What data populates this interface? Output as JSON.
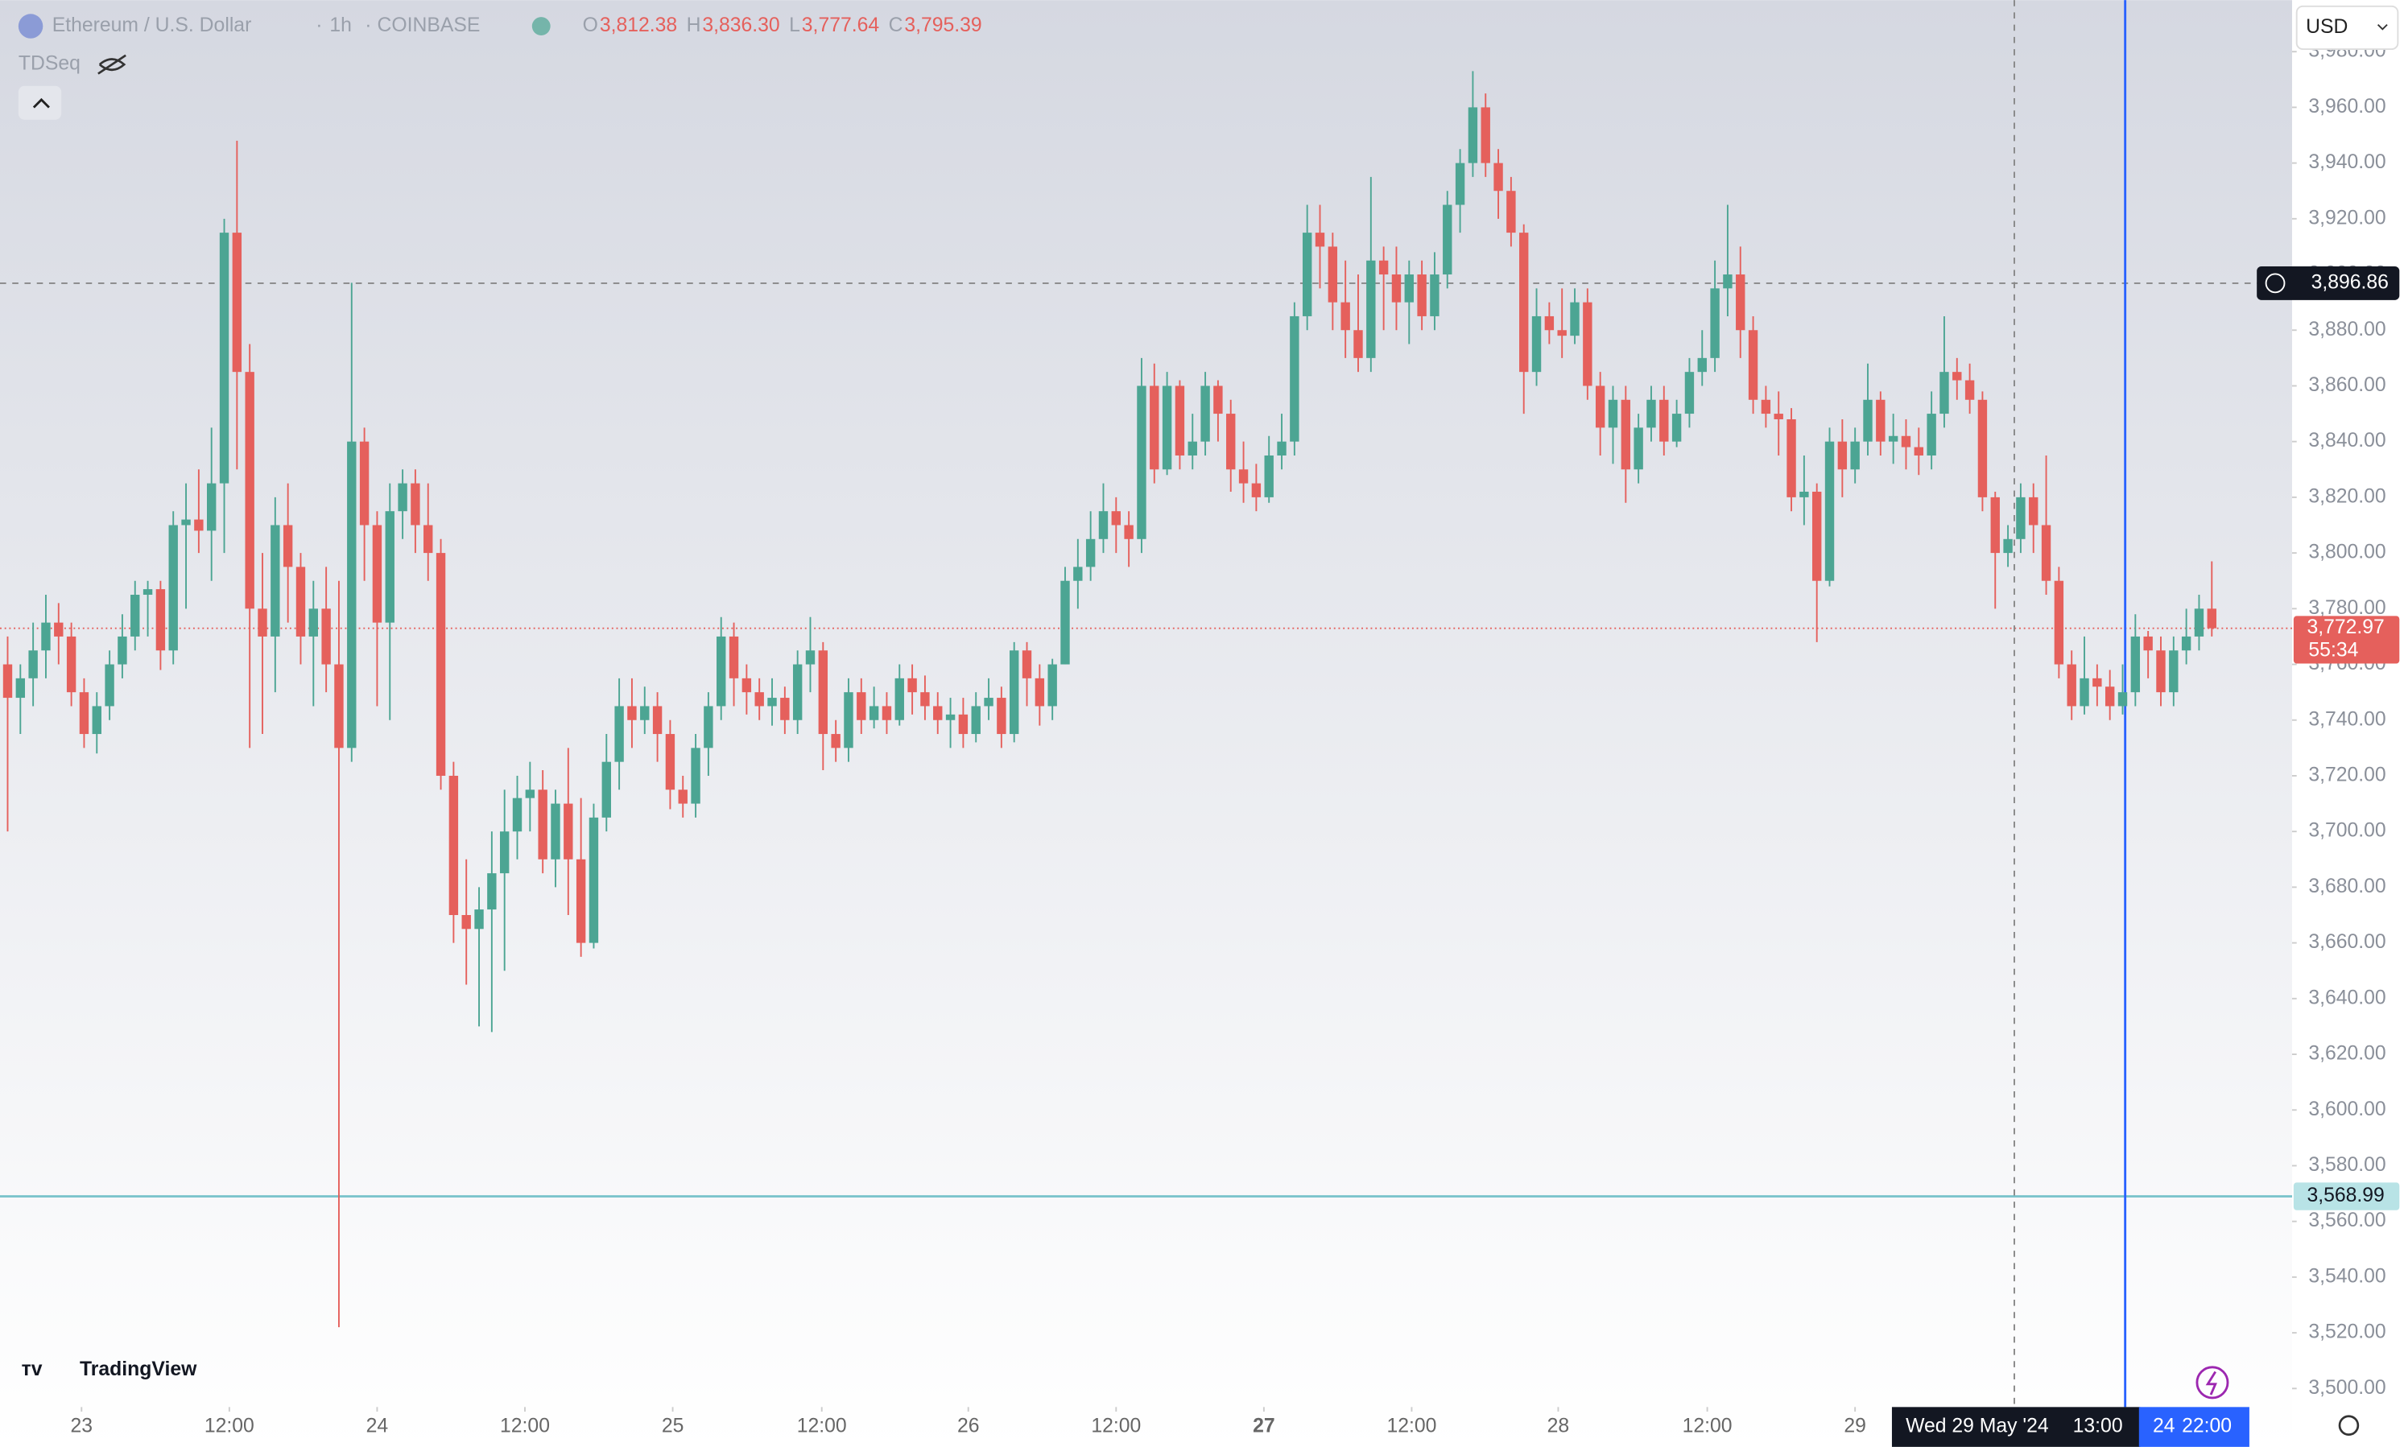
{
  "chart_data": {
    "type": "candlestick",
    "title": "Ethereum / U.S. Dollar",
    "interval": "1h",
    "exchange": "COINBASE",
    "ohlc_legend": [
      {
        "key": "O",
        "value": 3812.38,
        "label": "3,812.38"
      },
      {
        "key": "H",
        "value": 3836.3,
        "label": "3,836.30"
      },
      {
        "key": "L",
        "value": 3777.64,
        "label": "3,777.64"
      },
      {
        "key": "C",
        "value": 3795.39,
        "label": "3,795.39"
      }
    ],
    "indicator": "TDSeq",
    "currency": "USD",
    "brand": "TradingView",
    "up_color": "#4ca593",
    "down_color": "#e5605c",
    "candles": [
      [
        3760,
        3770,
        3700,
        3748
      ],
      [
        3748,
        3760,
        3735,
        3755
      ],
      [
        3755,
        3775,
        3745,
        3765
      ],
      [
        3765,
        3785,
        3755,
        3775
      ],
      [
        3775,
        3782,
        3760,
        3770
      ],
      [
        3770,
        3775,
        3745,
        3750
      ],
      [
        3750,
        3755,
        3730,
        3735
      ],
      [
        3735,
        3750,
        3728,
        3745
      ],
      [
        3745,
        3765,
        3740,
        3760
      ],
      [
        3760,
        3778,
        3755,
        3770
      ],
      [
        3770,
        3790,
        3765,
        3785
      ],
      [
        3785,
        3790,
        3770,
        3787
      ],
      [
        3787,
        3790,
        3758,
        3765
      ],
      [
        3765,
        3815,
        3760,
        3810
      ],
      [
        3810,
        3825,
        3780,
        3812
      ],
      [
        3812,
        3830,
        3800,
        3808
      ],
      [
        3808,
        3845,
        3790,
        3825
      ],
      [
        3825,
        3920,
        3800,
        3915
      ],
      [
        3915,
        3948,
        3830,
        3865
      ],
      [
        3865,
        3875,
        3730,
        3780
      ],
      [
        3780,
        3800,
        3735,
        3770
      ],
      [
        3770,
        3820,
        3750,
        3810
      ],
      [
        3810,
        3825,
        3775,
        3795
      ],
      [
        3795,
        3800,
        3760,
        3770
      ],
      [
        3770,
        3790,
        3745,
        3780
      ],
      [
        3780,
        3795,
        3750,
        3760
      ],
      [
        3760,
        3790,
        3522,
        3730
      ],
      [
        3730,
        3897,
        3725,
        3840
      ],
      [
        3840,
        3845,
        3790,
        3810
      ],
      [
        3810,
        3815,
        3745,
        3775
      ],
      [
        3775,
        3825,
        3740,
        3815
      ],
      [
        3815,
        3830,
        3805,
        3825
      ],
      [
        3825,
        3830,
        3800,
        3810
      ],
      [
        3810,
        3825,
        3790,
        3800
      ],
      [
        3800,
        3805,
        3715,
        3720
      ],
      [
        3720,
        3725,
        3660,
        3670
      ],
      [
        3670,
        3690,
        3645,
        3665
      ],
      [
        3665,
        3680,
        3630,
        3672
      ],
      [
        3672,
        3700,
        3628,
        3685
      ],
      [
        3685,
        3715,
        3650,
        3700
      ],
      [
        3700,
        3720,
        3690,
        3712
      ],
      [
        3712,
        3725,
        3700,
        3715
      ],
      [
        3715,
        3722,
        3685,
        3690
      ],
      [
        3690,
        3715,
        3680,
        3710
      ],
      [
        3710,
        3730,
        3670,
        3690
      ],
      [
        3690,
        3712,
        3655,
        3660
      ],
      [
        3660,
        3710,
        3658,
        3705
      ],
      [
        3705,
        3735,
        3700,
        3725
      ],
      [
        3725,
        3755,
        3715,
        3745
      ],
      [
        3745,
        3755,
        3730,
        3740
      ],
      [
        3740,
        3752,
        3735,
        3745
      ],
      [
        3745,
        3750,
        3725,
        3735
      ],
      [
        3735,
        3740,
        3708,
        3715
      ],
      [
        3715,
        3720,
        3705,
        3710
      ],
      [
        3710,
        3735,
        3705,
        3730
      ],
      [
        3730,
        3750,
        3720,
        3745
      ],
      [
        3745,
        3777,
        3740,
        3770
      ],
      [
        3770,
        3775,
        3745,
        3755
      ],
      [
        3755,
        3760,
        3742,
        3750
      ],
      [
        3750,
        3755,
        3740,
        3745
      ],
      [
        3745,
        3755,
        3738,
        3748
      ],
      [
        3748,
        3752,
        3735,
        3740
      ],
      [
        3740,
        3765,
        3735,
        3760
      ],
      [
        3760,
        3777,
        3750,
        3765
      ],
      [
        3765,
        3768,
        3722,
        3735
      ],
      [
        3735,
        3740,
        3725,
        3730
      ],
      [
        3730,
        3755,
        3725,
        3750
      ],
      [
        3750,
        3755,
        3735,
        3740
      ],
      [
        3740,
        3752,
        3737,
        3745
      ],
      [
        3745,
        3750,
        3735,
        3740
      ],
      [
        3740,
        3760,
        3738,
        3755
      ],
      [
        3755,
        3760,
        3742,
        3750
      ],
      [
        3750,
        3756,
        3740,
        3745
      ],
      [
        3745,
        3750,
        3735,
        3740
      ],
      [
        3740,
        3748,
        3730,
        3742
      ],
      [
        3742,
        3748,
        3730,
        3735
      ],
      [
        3735,
        3750,
        3732,
        3745
      ],
      [
        3745,
        3755,
        3740,
        3748
      ],
      [
        3748,
        3752,
        3730,
        3735
      ],
      [
        3735,
        3768,
        3732,
        3765
      ],
      [
        3765,
        3768,
        3745,
        3755
      ],
      [
        3755,
        3760,
        3738,
        3745
      ],
      [
        3745,
        3762,
        3740,
        3760
      ],
      [
        3760,
        3795,
        3760,
        3790
      ],
      [
        3790,
        3805,
        3780,
        3795
      ],
      [
        3795,
        3815,
        3790,
        3805
      ],
      [
        3805,
        3825,
        3800,
        3815
      ],
      [
        3815,
        3820,
        3800,
        3810
      ],
      [
        3810,
        3815,
        3795,
        3805
      ],
      [
        3805,
        3870,
        3800,
        3860
      ],
      [
        3860,
        3868,
        3825,
        3830
      ],
      [
        3830,
        3865,
        3828,
        3860
      ],
      [
        3860,
        3862,
        3830,
        3835
      ],
      [
        3835,
        3850,
        3830,
        3840
      ],
      [
        3840,
        3865,
        3835,
        3860
      ],
      [
        3860,
        3862,
        3840,
        3850
      ],
      [
        3850,
        3855,
        3822,
        3830
      ],
      [
        3830,
        3840,
        3818,
        3825
      ],
      [
        3825,
        3832,
        3815,
        3820
      ],
      [
        3820,
        3842,
        3818,
        3835
      ],
      [
        3835,
        3850,
        3830,
        3840
      ],
      [
        3840,
        3890,
        3835,
        3885
      ],
      [
        3885,
        3925,
        3880,
        3915
      ],
      [
        3915,
        3925,
        3895,
        3910
      ],
      [
        3910,
        3915,
        3880,
        3890
      ],
      [
        3890,
        3905,
        3870,
        3880
      ],
      [
        3880,
        3900,
        3865,
        3870
      ],
      [
        3870,
        3935,
        3865,
        3905
      ],
      [
        3905,
        3910,
        3880,
        3900
      ],
      [
        3900,
        3910,
        3880,
        3890
      ],
      [
        3890,
        3905,
        3875,
        3900
      ],
      [
        3900,
        3905,
        3880,
        3885
      ],
      [
        3885,
        3908,
        3880,
        3900
      ],
      [
        3900,
        3930,
        3895,
        3925
      ],
      [
        3925,
        3945,
        3915,
        3940
      ],
      [
        3940,
        3973,
        3935,
        3960
      ],
      [
        3960,
        3965,
        3935,
        3940
      ],
      [
        3940,
        3945,
        3920,
        3930
      ],
      [
        3930,
        3935,
        3910,
        3915
      ],
      [
        3915,
        3918,
        3850,
        3865
      ],
      [
        3865,
        3895,
        3860,
        3885
      ],
      [
        3885,
        3890,
        3875,
        3880
      ],
      [
        3880,
        3895,
        3870,
        3878
      ],
      [
        3878,
        3895,
        3875,
        3890
      ],
      [
        3890,
        3895,
        3855,
        3860
      ],
      [
        3860,
        3865,
        3835,
        3845
      ],
      [
        3845,
        3860,
        3832,
        3855
      ],
      [
        3855,
        3860,
        3818,
        3830
      ],
      [
        3830,
        3850,
        3825,
        3845
      ],
      [
        3845,
        3860,
        3840,
        3855
      ],
      [
        3855,
        3860,
        3835,
        3840
      ],
      [
        3840,
        3855,
        3838,
        3850
      ],
      [
        3850,
        3870,
        3845,
        3865
      ],
      [
        3865,
        3880,
        3860,
        3870
      ],
      [
        3870,
        3905,
        3865,
        3895
      ],
      [
        3895,
        3925,
        3885,
        3900
      ],
      [
        3900,
        3910,
        3870,
        3880
      ],
      [
        3880,
        3885,
        3850,
        3855
      ],
      [
        3855,
        3860,
        3845,
        3850
      ],
      [
        3850,
        3858,
        3835,
        3848
      ],
      [
        3848,
        3852,
        3815,
        3820
      ],
      [
        3820,
        3835,
        3810,
        3822
      ],
      [
        3822,
        3825,
        3768,
        3790
      ],
      [
        3790,
        3845,
        3788,
        3840
      ],
      [
        3840,
        3848,
        3820,
        3830
      ],
      [
        3830,
        3845,
        3825,
        3840
      ],
      [
        3840,
        3868,
        3835,
        3855
      ],
      [
        3855,
        3858,
        3835,
        3840
      ],
      [
        3840,
        3850,
        3832,
        3842
      ],
      [
        3842,
        3848,
        3830,
        3838
      ],
      [
        3838,
        3845,
        3828,
        3835
      ],
      [
        3835,
        3858,
        3830,
        3850
      ],
      [
        3850,
        3885,
        3845,
        3865
      ],
      [
        3865,
        3870,
        3855,
        3862
      ],
      [
        3862,
        3868,
        3850,
        3855
      ],
      [
        3855,
        3858,
        3815,
        3820
      ],
      [
        3820,
        3822,
        3780,
        3800
      ],
      [
        3800,
        3810,
        3795,
        3805
      ],
      [
        3805,
        3825,
        3800,
        3820
      ],
      [
        3820,
        3825,
        3800,
        3810
      ],
      [
        3810,
        3835,
        3785,
        3790
      ],
      [
        3790,
        3795,
        3755,
        3760
      ],
      [
        3760,
        3765,
        3740,
        3745
      ],
      [
        3745,
        3770,
        3742,
        3755
      ],
      [
        3755,
        3760,
        3745,
        3752
      ],
      [
        3752,
        3758,
        3740,
        3745
      ],
      [
        3745,
        3760,
        3742,
        3750
      ],
      [
        3750,
        3778,
        3745,
        3770
      ],
      [
        3770,
        3772,
        3755,
        3765
      ],
      [
        3765,
        3770,
        3745,
        3750
      ],
      [
        3750,
        3770,
        3745,
        3765
      ],
      [
        3765,
        3780,
        3760,
        3770
      ],
      [
        3770,
        3785,
        3765,
        3780
      ],
      [
        3780,
        3797,
        3770,
        3772.97
      ]
    ],
    "xlim": [
      -0.6,
      179.3
    ],
    "xticks": [
      {
        "value": 5.8,
        "label": "23"
      },
      {
        "value": 17.4,
        "label": "12:00"
      },
      {
        "value": 29,
        "label": "24"
      },
      {
        "value": 40.6,
        "label": "12:00"
      },
      {
        "value": 52.2,
        "label": "25"
      },
      {
        "value": 63.9,
        "label": "12:00"
      },
      {
        "value": 75.4,
        "label": "26"
      },
      {
        "value": 87,
        "label": "12:00"
      },
      {
        "value": 98.6,
        "label": "27"
      },
      {
        "value": 110.2,
        "label": "12:00"
      },
      {
        "value": 121.7,
        "label": "28"
      },
      {
        "value": 133.4,
        "label": "12:00"
      },
      {
        "value": 145,
        "label": "29"
      }
    ],
    "ylim": [
      3495,
      3998.5
    ],
    "yticks": [
      {
        "value": 3500,
        "label": "3,500.00"
      },
      {
        "value": 3520,
        "label": "3,520.00"
      },
      {
        "value": 3540,
        "label": "3,540.00"
      },
      {
        "value": 3560,
        "label": "3,560.00"
      },
      {
        "value": 3580,
        "label": "3,580.00"
      },
      {
        "value": 3600,
        "label": "3,600.00"
      },
      {
        "value": 3620,
        "label": "3,620.00"
      },
      {
        "value": 3640,
        "label": "3,640.00"
      },
      {
        "value": 3660,
        "label": "3,660.00"
      },
      {
        "value": 3680,
        "label": "3,680.00"
      },
      {
        "value": 3700,
        "label": "3,700.00"
      },
      {
        "value": 3720,
        "label": "3,720.00"
      },
      {
        "value": 3740,
        "label": "3,740.00"
      },
      {
        "value": 3760,
        "label": "3,760.00"
      },
      {
        "value": 3780,
        "label": "3,780.00"
      },
      {
        "value": 3800,
        "label": "3,800.00"
      },
      {
        "value": 3820,
        "label": "3,820.00"
      },
      {
        "value": 3840,
        "label": "3,840.00"
      },
      {
        "value": 3860,
        "label": "3,860.00"
      },
      {
        "value": 3880,
        "label": "3,880.00"
      },
      {
        "value": 3900,
        "label": "3,900.00"
      },
      {
        "value": 3920,
        "label": "3,920.00"
      },
      {
        "value": 3940,
        "label": "3,940.00"
      },
      {
        "value": 3960,
        "label": "3,960.00"
      },
      {
        "value": 3980,
        "label": "3,980.00"
      }
    ],
    "last_price": {
      "value": 3772.97,
      "label": "3,772.97",
      "countdown": "55:34",
      "color": "#e5605c"
    },
    "level_line": {
      "value": 3568.99,
      "label": "3,568.99",
      "color": "#7cc4cc"
    },
    "crosshair": {
      "price": {
        "value": 3896.86,
        "label": "3,896.86"
      },
      "x": 157.5,
      "date_label": "Wed 29 May '24",
      "time_label": "13:00"
    },
    "marker_line": {
      "x": 166.2,
      "color": "#2962ff",
      "labels": [
        "24",
        "22:00"
      ]
    }
  }
}
